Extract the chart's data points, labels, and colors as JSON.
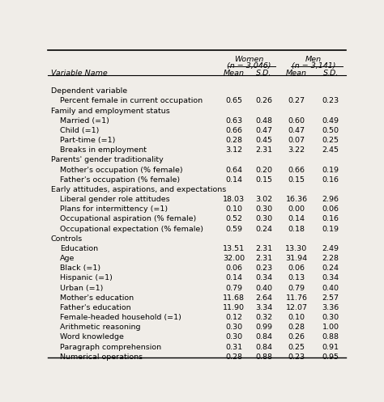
{
  "title_women": "Women",
  "title_women_n": "(n = 3,046)",
  "title_men": "Men",
  "title_men_n": "(n = 3,141)",
  "sections": [
    {
      "header": "Dependent variable",
      "rows": [
        {
          "label": "Percent female in current occupation",
          "w_mean": "0.65",
          "w_sd": "0.26",
          "m_mean": "0.27",
          "m_sd": "0.23"
        }
      ]
    },
    {
      "header": "Family and employment status",
      "rows": [
        {
          "label": "Married (=1)",
          "w_mean": "0.63",
          "w_sd": "0.48",
          "m_mean": "0.60",
          "m_sd": "0.49"
        },
        {
          "label": "Child (=1)",
          "w_mean": "0.66",
          "w_sd": "0.47",
          "m_mean": "0.47",
          "m_sd": "0.50"
        },
        {
          "label": "Part-time (=1)",
          "w_mean": "0.28",
          "w_sd": "0.45",
          "m_mean": "0.07",
          "m_sd": "0.25"
        },
        {
          "label": "Breaks in employment",
          "w_mean": "3.12",
          "w_sd": "2.31",
          "m_mean": "3.22",
          "m_sd": "2.45"
        }
      ]
    },
    {
      "header": "Parents' gender traditionality",
      "rows": [
        {
          "label": "Mother's occupation (% female)",
          "w_mean": "0.64",
          "w_sd": "0.20",
          "m_mean": "0.66",
          "m_sd": "0.19"
        },
        {
          "label": "Father's occupation (% female)",
          "w_mean": "0.14",
          "w_sd": "0.15",
          "m_mean": "0.15",
          "m_sd": "0.16"
        }
      ]
    },
    {
      "header": "Early attitudes, aspirations, and expectations",
      "rows": [
        {
          "label": "Liberal gender role attitudes",
          "w_mean": "18.03",
          "w_sd": "3.02",
          "m_mean": "16.36",
          "m_sd": "2.96"
        },
        {
          "label": "Plans for intermittency (=1)",
          "w_mean": "0.10",
          "w_sd": "0.30",
          "m_mean": "0.00",
          "m_sd": "0.06"
        },
        {
          "label": "Occupational aspiration (% female)",
          "w_mean": "0.52",
          "w_sd": "0.30",
          "m_mean": "0.14",
          "m_sd": "0.16"
        },
        {
          "label": "Occupational expectation (% female)",
          "w_mean": "0.59",
          "w_sd": "0.24",
          "m_mean": "0.18",
          "m_sd": "0.19"
        }
      ]
    },
    {
      "header": "Controls",
      "rows": [
        {
          "label": "Education",
          "w_mean": "13.51",
          "w_sd": "2.31",
          "m_mean": "13.30",
          "m_sd": "2.49"
        },
        {
          "label": "Age",
          "w_mean": "32.00",
          "w_sd": "2.31",
          "m_mean": "31.94",
          "m_sd": "2.28"
        },
        {
          "label": "Black (=1)",
          "w_mean": "0.06",
          "w_sd": "0.23",
          "m_mean": "0.06",
          "m_sd": "0.24"
        },
        {
          "label": "Hispanic (=1)",
          "w_mean": "0.14",
          "w_sd": "0.34",
          "m_mean": "0.13",
          "m_sd": "0.34"
        },
        {
          "label": "Urban (=1)",
          "w_mean": "0.79",
          "w_sd": "0.40",
          "m_mean": "0.79",
          "m_sd": "0.40"
        },
        {
          "label": "Mother's education",
          "w_mean": "11.68",
          "w_sd": "2.64",
          "m_mean": "11.76",
          "m_sd": "2.57"
        },
        {
          "label": "Father's education",
          "w_mean": "11.90",
          "w_sd": "3.34",
          "m_mean": "12.07",
          "m_sd": "3.36"
        },
        {
          "label": "Female-headed household (=1)",
          "w_mean": "0.12",
          "w_sd": "0.32",
          "m_mean": "0.10",
          "m_sd": "0.30"
        },
        {
          "label": "Arithmetic reasoning",
          "w_mean": "0.30",
          "w_sd": "0.99",
          "m_mean": "0.28",
          "m_sd": "1.00"
        },
        {
          "label": "Word knowledge",
          "w_mean": "0.30",
          "w_sd": "0.84",
          "m_mean": "0.26",
          "m_sd": "0.88"
        },
        {
          "label": "Paragraph comprehension",
          "w_mean": "0.31",
          "w_sd": "0.84",
          "m_mean": "0.25",
          "m_sd": "0.91"
        },
        {
          "label": "Numerical operations",
          "w_mean": "0.28",
          "w_sd": "0.88",
          "m_mean": "0.23",
          "m_sd": "0.95"
        }
      ]
    }
  ],
  "bg_color": "#f0ede8",
  "text_color": "#000000",
  "font_size": 6.8
}
